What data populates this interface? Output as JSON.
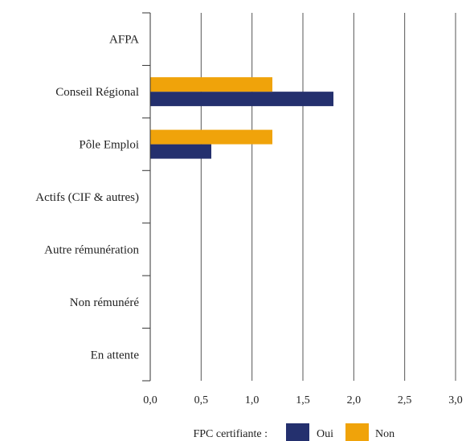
{
  "chart_data": {
    "type": "bar",
    "orientation": "horizontal",
    "categories": [
      "AFPA",
      "Conseil Régional",
      "Pôle Emploi",
      "Actifs (CIF & autres)",
      "Autre rémunération",
      "Non rémunéré",
      "En attente"
    ],
    "series": [
      {
        "name": "Oui",
        "color": "#24306e",
        "values": [
          0,
          1.8,
          0.6,
          0,
          0,
          0,
          0
        ]
      },
      {
        "name": "Non",
        "color": "#f0a30a",
        "values": [
          0,
          1.2,
          1.2,
          0,
          0,
          0,
          0
        ]
      }
    ],
    "xlim": [
      0,
      3
    ],
    "x_ticks": [
      "0,0",
      "0,5",
      "1,0",
      "1,5",
      "2,0",
      "2,5",
      "3,0"
    ],
    "grid": "vertical",
    "legend": {
      "title": "FPC certifiante :",
      "position": "bottom"
    }
  }
}
